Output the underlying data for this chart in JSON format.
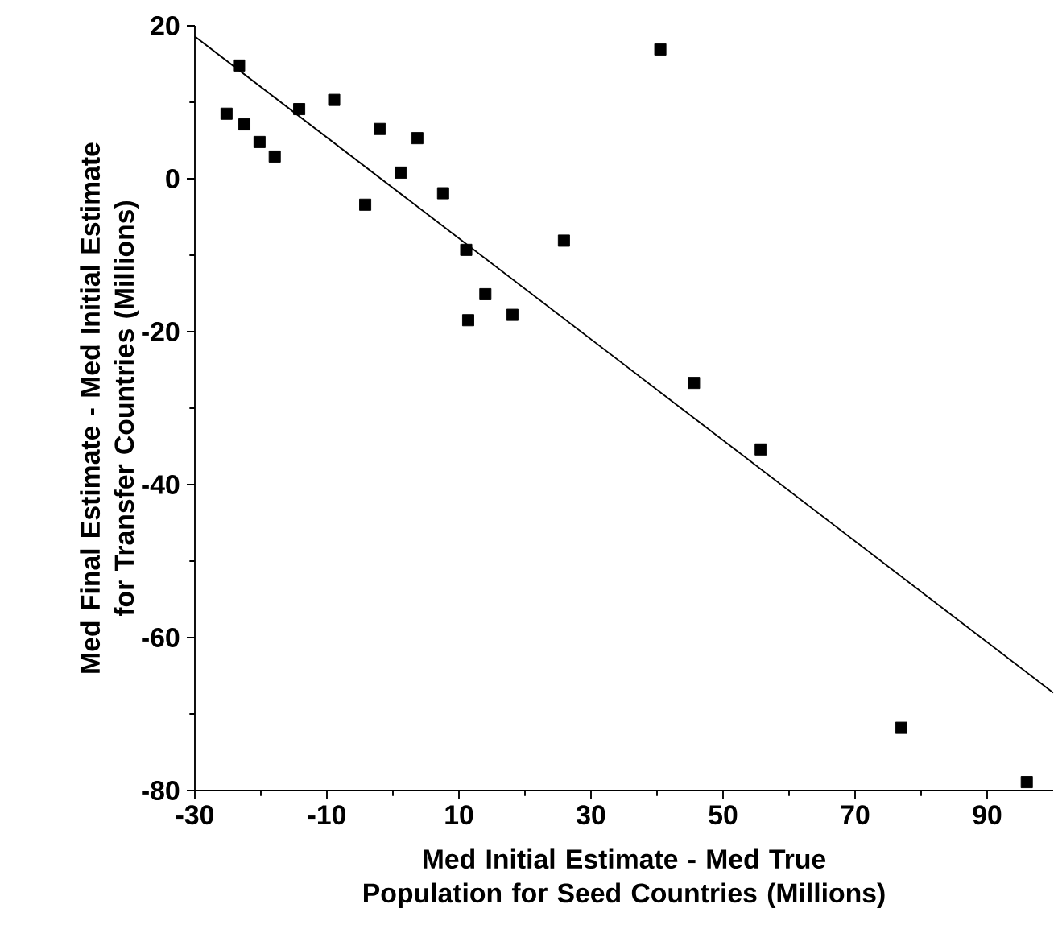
{
  "chart_data": {
    "type": "scatter",
    "xlabel": "Med Initial  Estimate - Med True Population for Seed Countries (Millions)",
    "ylabel": "Med Final Estimate - Med Initial Estimate for Transfer Countries (Millions)",
    "xlim": [
      -30,
      100
    ],
    "ylim": [
      -80,
      20
    ],
    "xticks": [
      -30,
      -10,
      10,
      30,
      50,
      70,
      90
    ],
    "yticks": [
      -80,
      -60,
      -40,
      -20,
      0,
      20
    ],
    "grid": false,
    "series": [
      {
        "marker": "square",
        "color": "#000000",
        "x": [
          -23.3,
          -25.2,
          -22.5,
          -20.2,
          -17.9,
          -14.2,
          -8.9,
          -4.2,
          -2.0,
          1.2,
          3.7,
          7.6,
          11.1,
          11.4,
          14.0,
          18.1,
          25.9,
          40.5,
          45.6,
          55.7,
          77.0,
          96.0
        ],
        "values": [
          14.8,
          8.5,
          7.1,
          4.8,
          2.9,
          9.1,
          10.3,
          -3.4,
          6.5,
          0.8,
          5.3,
          -1.9,
          -9.3,
          -18.5,
          -15.1,
          -17.8,
          -8.1,
          16.9,
          -26.7,
          -35.4,
          -71.8,
          -78.9
        ]
      },
      {
        "type": "line",
        "marker": "none",
        "line_style": "solid",
        "color": "#000000",
        "x": [
          -30,
          100
        ],
        "values": [
          18.6,
          -67.2
        ]
      }
    ]
  }
}
